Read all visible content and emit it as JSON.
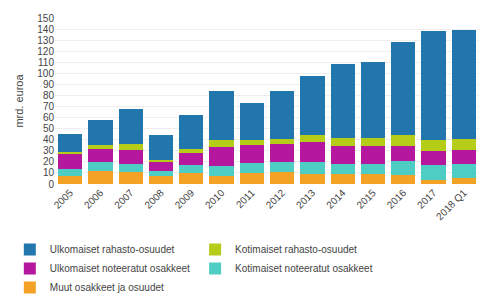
{
  "chart_data": {
    "type": "bar",
    "stacked": true,
    "ylabel": "mrd. euroa",
    "categories": [
      "2005",
      "2006",
      "2007",
      "2008",
      "2009",
      "2010",
      "2011",
      "2012",
      "2013",
      "2014",
      "2015",
      "2016",
      "2017",
      "2018 Q1"
    ],
    "series": [
      {
        "name": "Muut osakkeet ja osuudet",
        "color": "#f4a226",
        "values": [
          7,
          12,
          11,
          7,
          10,
          7,
          10,
          11,
          9,
          9,
          9,
          8,
          4,
          5
        ]
      },
      {
        "name": "Kotimaiset noteeratut osakkeet",
        "color": "#4ecdc4",
        "values": [
          7,
          8,
          7,
          5,
          7,
          9,
          9,
          9,
          11,
          9,
          9,
          13,
          13,
          13
        ]
      },
      {
        "name": "Ulkomaiset noteeratut osakkeet",
        "color": "#b5179e",
        "values": [
          13,
          12,
          13,
          8,
          11,
          17,
          16,
          16,
          18,
          16,
          16,
          13,
          13,
          13
        ]
      },
      {
        "name": "Kotimaiset rahasto-osuudet",
        "color": "#b5cc18",
        "values": [
          2,
          3,
          5,
          2,
          4,
          7,
          5,
          5,
          6,
          8,
          8,
          10,
          10,
          10
        ]
      },
      {
        "name": "Ulkomaiset rahasto-osuudet",
        "color": "#2176ae",
        "values": [
          16,
          23,
          32,
          22,
          30,
          44,
          33,
          43,
          54,
          66,
          68,
          84,
          98,
          98
        ]
      }
    ],
    "ylim": [
      0,
      150
    ],
    "yticks": [
      0,
      10,
      20,
      30,
      40,
      50,
      60,
      70,
      80,
      90,
      100,
      110,
      120,
      130,
      140,
      150
    ],
    "grid": true,
    "legend": "bottom"
  }
}
